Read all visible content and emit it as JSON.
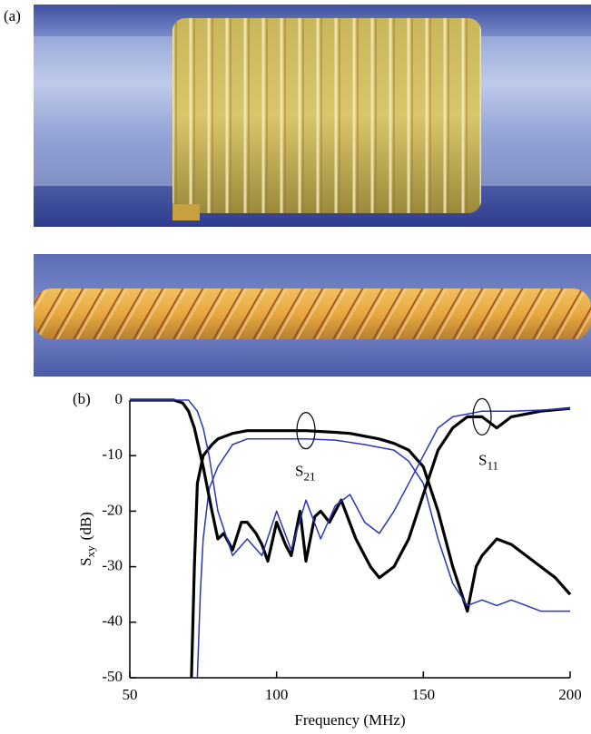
{
  "panels": [
    "(a)",
    "(b)"
  ],
  "chart_data": {
    "type": "line",
    "xlabel": "Frequency (MHz)",
    "ylabel": {
      "main": "S",
      "sub": "xy",
      "unit": "(dB)"
    },
    "annotations": [
      {
        "main": "S",
        "sub": "21"
      },
      {
        "main": "S",
        "sub": "11"
      }
    ],
    "xlim": [
      50,
      200
    ],
    "ylim": [
      -50,
      0
    ],
    "xticks": [
      50,
      100,
      150,
      200
    ],
    "yticks": [
      0,
      -10,
      -20,
      -30,
      -40,
      -50
    ],
    "series": [
      {
        "color": "#000000",
        "width": 3.2,
        "x": [
          71,
          72,
          73,
          75,
          78,
          80,
          85,
          90,
          100,
          110,
          120,
          125,
          135,
          140,
          145,
          150,
          155,
          160,
          165,
          168,
          170,
          175,
          180,
          185,
          190,
          195,
          200
        ],
        "values": [
          -50,
          -30,
          -15,
          -10,
          -8,
          -7,
          -6,
          -5.5,
          -5.5,
          -5.5,
          -5.8,
          -6,
          -7,
          -7.8,
          -9,
          -12,
          -20,
          -30,
          -38,
          -30,
          -28,
          -25,
          -26,
          -28,
          -30,
          -32,
          -35
        ]
      },
      {
        "color": "#2a35b8",
        "width": 1.5,
        "x": [
          73,
          74,
          75,
          77,
          80,
          85,
          90,
          100,
          110,
          120,
          130,
          140,
          145,
          150,
          155,
          160,
          165,
          170,
          175,
          180,
          190,
          200
        ],
        "values": [
          -50,
          -35,
          -25,
          -16,
          -12,
          -8,
          -7,
          -7,
          -7,
          -7.2,
          -8,
          -9,
          -11,
          -15,
          -25,
          -33,
          -37,
          -36,
          -37,
          -36,
          -38,
          -38
        ]
      },
      {
        "color": "#000000",
        "width": 3.2,
        "x": [
          50,
          60,
          65,
          68,
          70,
          72,
          75,
          78,
          80,
          82,
          85,
          88,
          90,
          93,
          95,
          97,
          100,
          103,
          105,
          108,
          110,
          113,
          115,
          118,
          122,
          127,
          132,
          135,
          140,
          145,
          150,
          155,
          160,
          165,
          170,
          175,
          180,
          190,
          200
        ],
        "values": [
          0,
          0,
          0,
          -0.5,
          -2,
          -5,
          -12,
          -20,
          -25,
          -24,
          -27,
          -22,
          -22,
          -24,
          -26,
          -29,
          -22,
          -26,
          -28,
          -20,
          -29,
          -21,
          -20,
          -22,
          -18,
          -25,
          -30,
          -32,
          -30,
          -25,
          -17,
          -9,
          -5,
          -3,
          -3,
          -5,
          -3,
          -2,
          -1.5
        ]
      },
      {
        "color": "#2a35b8",
        "width": 1.5,
        "x": [
          50,
          60,
          70,
          73,
          75,
          77,
          80,
          85,
          90,
          95,
          100,
          105,
          110,
          115,
          120,
          125,
          130,
          135,
          140,
          145,
          150,
          155,
          160,
          170,
          180,
          190,
          200
        ],
        "values": [
          0,
          0,
          0,
          -2,
          -5,
          -10,
          -20,
          -28,
          -25,
          -28,
          -20,
          -27,
          -18,
          -25,
          -19,
          -17,
          -22,
          -24,
          -20,
          -15,
          -10,
          -5,
          -3,
          -2,
          -2,
          -1.8,
          -1.5
        ]
      }
    ]
  }
}
